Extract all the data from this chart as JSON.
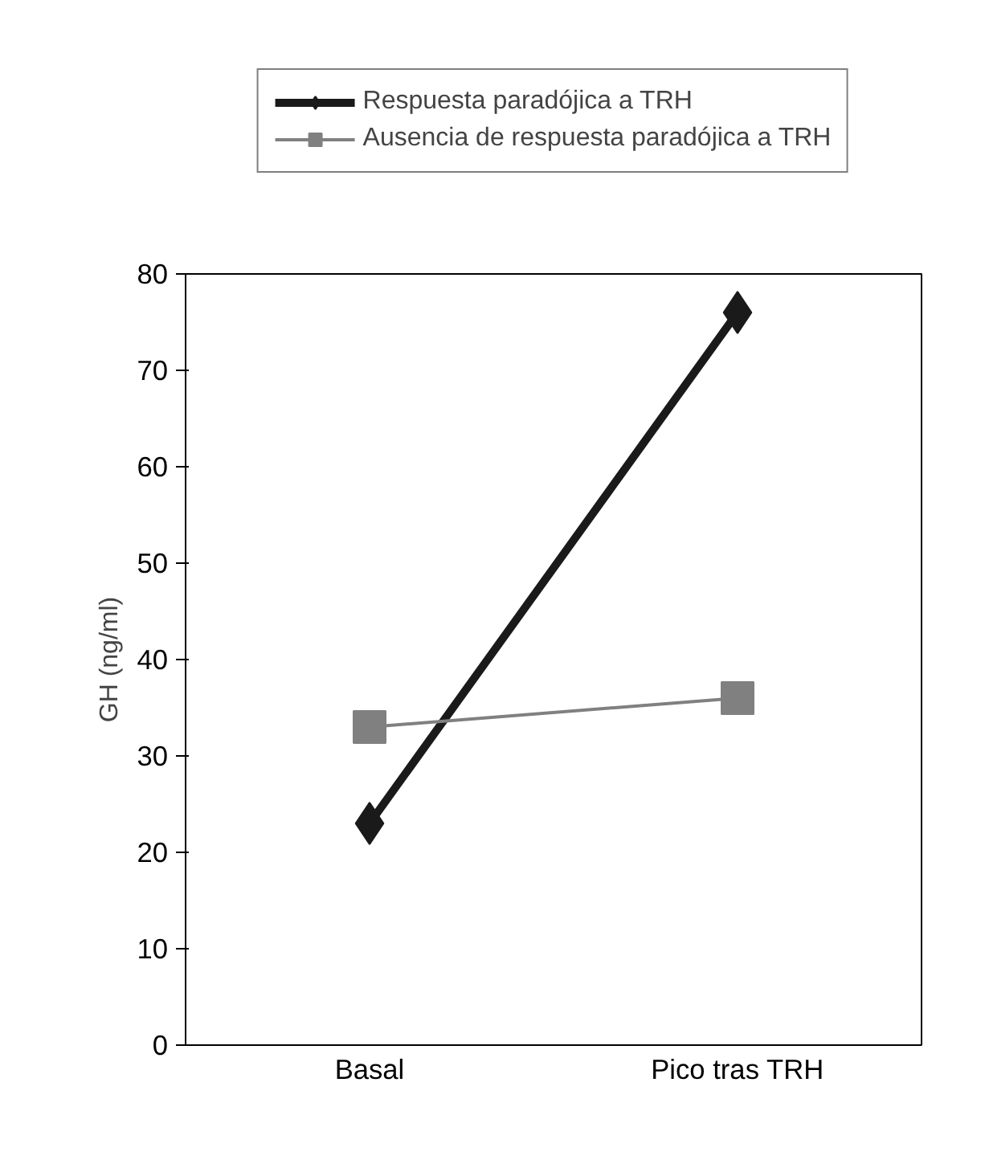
{
  "chart_data": {
    "type": "line",
    "categories": [
      "Basal",
      "Pico tras TRH"
    ],
    "ylabel": "GH (ng/ml)",
    "ylim": [
      0,
      80
    ],
    "yticks": [
      0,
      10,
      20,
      30,
      40,
      50,
      60,
      70,
      80
    ],
    "grid": false,
    "legend": "top",
    "series": [
      {
        "name": "Respuesta paradójica a TRH",
        "color": "#1a1a1a",
        "values": [
          23,
          76
        ],
        "marker": "diamond"
      },
      {
        "name": "Ausencia de respuesta paradójica a TRH",
        "color": "#808080",
        "values": [
          33,
          36
        ],
        "marker": "square"
      }
    ]
  }
}
